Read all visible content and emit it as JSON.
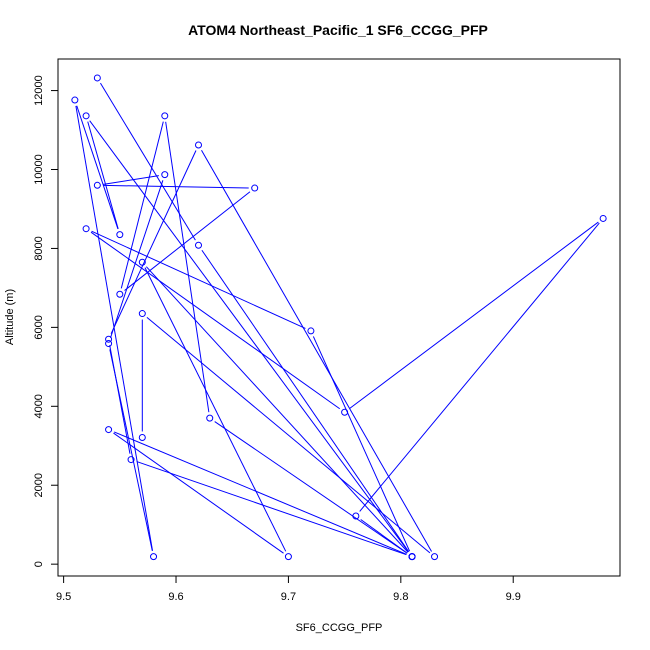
{
  "chart_data": {
    "type": "line",
    "title": "ATOM4 Northeast_Pacific_1 SF6_CCGG_PFP",
    "xlabel": "SF6_CCGG_PFP",
    "ylabel": "Altitude (m)",
    "xlim": [
      9.495,
      9.995
    ],
    "ylim": [
      -300,
      12800
    ],
    "x_ticks": [
      9.5,
      9.6,
      9.7,
      9.8,
      9.9
    ],
    "x_tick_labels": [
      "9.5",
      "9.6",
      "9.7",
      "9.8",
      "9.9"
    ],
    "y_ticks": [
      0,
      2000,
      4000,
      6000,
      8000,
      10000,
      12000
    ],
    "y_tick_labels": [
      "0",
      "2000",
      "4000",
      "6000",
      "8000",
      "10000",
      "12000"
    ],
    "grid": false,
    "marker": "open-circle",
    "series_color": "#0000ff",
    "points": [
      {
        "x": 9.53,
        "y": 12320
      },
      {
        "x": 9.62,
        "y": 8080
      },
      {
        "x": 9.81,
        "y": 190
      },
      {
        "x": 9.52,
        "y": 11360
      },
      {
        "x": 9.55,
        "y": 8350
      },
      {
        "x": 9.51,
        "y": 11760
      },
      {
        "x": 9.58,
        "y": 190
      },
      {
        "x": 9.54,
        "y": 5590
      },
      {
        "x": 9.59,
        "y": 9870
      },
      {
        "x": 9.53,
        "y": 9600
      },
      {
        "x": 9.67,
        "y": 9530
      },
      {
        "x": 9.55,
        "y": 6840
      },
      {
        "x": 9.59,
        "y": 11360
      },
      {
        "x": 9.63,
        "y": 3700
      },
      {
        "x": 9.81,
        "y": 190
      },
      {
        "x": 9.57,
        "y": 7650
      },
      {
        "x": 9.7,
        "y": 190
      },
      {
        "x": 9.54,
        "y": 3410
      },
      {
        "x": 9.81,
        "y": 190
      },
      {
        "x": 9.76,
        "y": 1220
      },
      {
        "x": 9.98,
        "y": 8760
      },
      {
        "x": 9.75,
        "y": 3850
      },
      {
        "x": 9.52,
        "y": 8500
      },
      {
        "x": 9.72,
        "y": 5910
      },
      {
        "x": 9.81,
        "y": 190
      },
      {
        "x": 9.56,
        "y": 2650
      },
      {
        "x": 9.54,
        "y": 5700
      },
      {
        "x": 9.62,
        "y": 10620
      },
      {
        "x": 9.83,
        "y": 190
      },
      {
        "x": 9.57,
        "y": 6350
      },
      {
        "x": 9.57,
        "y": 3210
      }
    ]
  }
}
